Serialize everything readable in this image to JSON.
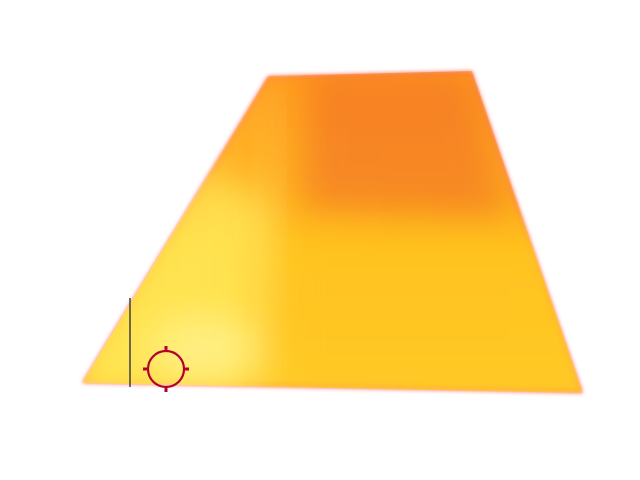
{
  "image": {
    "subject": "thermal-image-trapezoid",
    "palette": {
      "background": "#ffffff",
      "hot": "#fff36b",
      "warm": "#ffc318",
      "orange": "#ff9a1c",
      "hotspot": "#f06a2c",
      "edge": "#ff6f5e",
      "marker": "#b4002f",
      "cursor": "#4a4a4a"
    },
    "icons": {
      "marker": "crosshair-circle-icon",
      "cursor": "text-cursor-icon"
    }
  }
}
